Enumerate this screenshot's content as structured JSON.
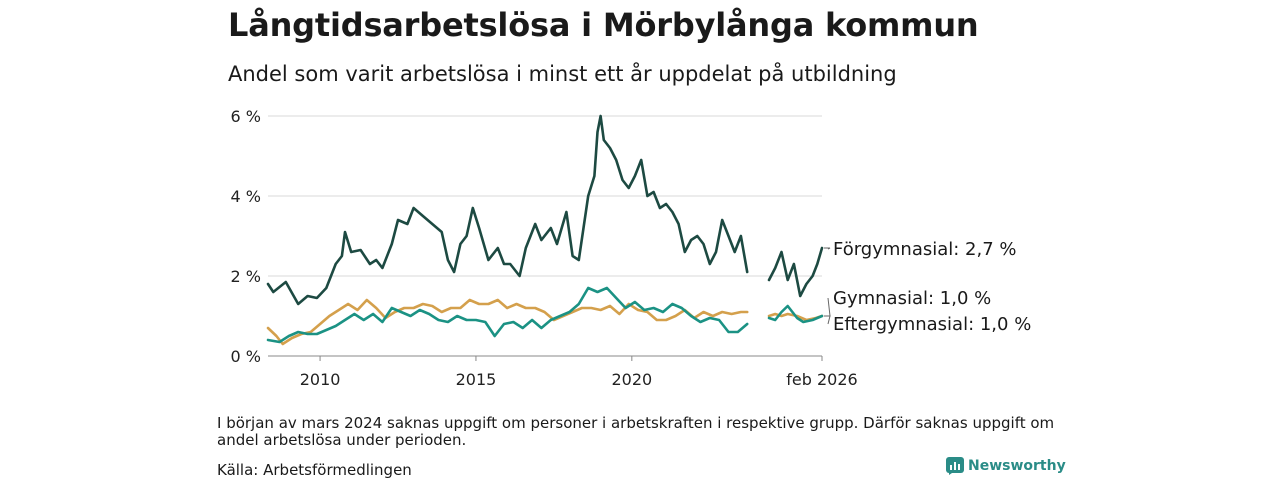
{
  "title": "Långtidsarbetslösa i Mörbylånga kommun",
  "subtitle": "Andel som varit arbetslösa i minst ett år uppdelat på utbildning",
  "note": "I början av mars 2024 saknas uppgift om personer i arbetskraften i respektive grupp. Därför saknas uppgift om andel arbetslösa under perioden.",
  "source": "Källa: Arbetsförmedlingen",
  "brand": "Newsworthy",
  "chart_data": {
    "type": "line",
    "title": "Långtidsarbetslösa i Mörbylånga kommun",
    "xlabel": "",
    "ylabel": "",
    "ylim": [
      0,
      6
    ],
    "xlim": [
      2008.33,
      2026.1
    ],
    "y_ticks": [
      0,
      2,
      4,
      6
    ],
    "y_tick_labels": [
      "0 %",
      "2 %",
      "4 %",
      "6 %"
    ],
    "x_ticks": [
      2010,
      2015,
      2020,
      2026.1
    ],
    "x_tick_labels": [
      "2010",
      "2015",
      "2020",
      "feb 2026"
    ],
    "gap": [
      2023.6,
      2024.4
    ],
    "grid": true,
    "series": [
      {
        "name": "Förgymnasial",
        "end_label": "Förgymnasial: 2,7 %",
        "color": "#1d4a42",
        "points": [
          [
            2008.33,
            1.8
          ],
          [
            2008.5,
            1.6
          ],
          [
            2008.9,
            1.85
          ],
          [
            2009.3,
            1.3
          ],
          [
            2009.6,
            1.5
          ],
          [
            2009.9,
            1.45
          ],
          [
            2010.2,
            1.7
          ],
          [
            2010.5,
            2.3
          ],
          [
            2010.7,
            2.5
          ],
          [
            2010.8,
            3.1
          ],
          [
            2011.0,
            2.6
          ],
          [
            2011.3,
            2.65
          ],
          [
            2011.6,
            2.3
          ],
          [
            2011.8,
            2.4
          ],
          [
            2012.0,
            2.2
          ],
          [
            2012.3,
            2.8
          ],
          [
            2012.5,
            3.4
          ],
          [
            2012.8,
            3.3
          ],
          [
            2013.0,
            3.7
          ],
          [
            2013.3,
            3.5
          ],
          [
            2013.6,
            3.3
          ],
          [
            2013.9,
            3.1
          ],
          [
            2014.1,
            2.4
          ],
          [
            2014.3,
            2.1
          ],
          [
            2014.5,
            2.8
          ],
          [
            2014.7,
            3.0
          ],
          [
            2014.9,
            3.7
          ],
          [
            2015.1,
            3.2
          ],
          [
            2015.4,
            2.4
          ],
          [
            2015.7,
            2.7
          ],
          [
            2015.9,
            2.3
          ],
          [
            2016.1,
            2.3
          ],
          [
            2016.4,
            2.0
          ],
          [
            2016.6,
            2.7
          ],
          [
            2016.9,
            3.3
          ],
          [
            2017.1,
            2.9
          ],
          [
            2017.4,
            3.2
          ],
          [
            2017.6,
            2.8
          ],
          [
            2017.9,
            3.6
          ],
          [
            2018.1,
            2.5
          ],
          [
            2018.3,
            2.4
          ],
          [
            2018.6,
            4.0
          ],
          [
            2018.8,
            4.5
          ],
          [
            2018.9,
            5.6
          ],
          [
            2019.0,
            6.0
          ],
          [
            2019.1,
            5.4
          ],
          [
            2019.3,
            5.2
          ],
          [
            2019.5,
            4.9
          ],
          [
            2019.7,
            4.4
          ],
          [
            2019.9,
            4.2
          ],
          [
            2020.1,
            4.5
          ],
          [
            2020.3,
            4.9
          ],
          [
            2020.5,
            4.0
          ],
          [
            2020.7,
            4.1
          ],
          [
            2020.9,
            3.7
          ],
          [
            2021.1,
            3.8
          ],
          [
            2021.3,
            3.6
          ],
          [
            2021.5,
            3.3
          ],
          [
            2021.7,
            2.6
          ],
          [
            2021.9,
            2.9
          ],
          [
            2022.1,
            3.0
          ],
          [
            2022.3,
            2.8
          ],
          [
            2022.5,
            2.3
          ],
          [
            2022.7,
            2.6
          ],
          [
            2022.9,
            3.4
          ],
          [
            2023.1,
            3.0
          ],
          [
            2023.3,
            2.6
          ],
          [
            2023.5,
            3.0
          ],
          [
            2023.7,
            2.1
          ],
          null,
          [
            2024.4,
            1.9
          ],
          [
            2024.6,
            2.2
          ],
          [
            2024.8,
            2.6
          ],
          [
            2025.0,
            1.9
          ],
          [
            2025.2,
            2.3
          ],
          [
            2025.4,
            1.5
          ],
          [
            2025.6,
            1.8
          ],
          [
            2025.8,
            2.0
          ],
          [
            2025.95,
            2.3
          ],
          [
            2026.1,
            2.7
          ]
        ]
      },
      {
        "name": "Gymnasial",
        "end_label": "Gymnasial: 1,0 %",
        "color": "#d4a04c",
        "points": [
          [
            2008.33,
            0.7
          ],
          [
            2008.6,
            0.5
          ],
          [
            2008.8,
            0.3
          ],
          [
            2009.1,
            0.45
          ],
          [
            2009.4,
            0.55
          ],
          [
            2009.7,
            0.6
          ],
          [
            2010.0,
            0.8
          ],
          [
            2010.3,
            1.0
          ],
          [
            2010.6,
            1.15
          ],
          [
            2010.9,
            1.3
          ],
          [
            2011.2,
            1.15
          ],
          [
            2011.5,
            1.4
          ],
          [
            2011.8,
            1.2
          ],
          [
            2012.1,
            0.95
          ],
          [
            2012.4,
            1.1
          ],
          [
            2012.7,
            1.2
          ],
          [
            2013.0,
            1.2
          ],
          [
            2013.3,
            1.3
          ],
          [
            2013.6,
            1.25
          ],
          [
            2013.9,
            1.1
          ],
          [
            2014.2,
            1.2
          ],
          [
            2014.5,
            1.2
          ],
          [
            2014.8,
            1.4
          ],
          [
            2015.1,
            1.3
          ],
          [
            2015.4,
            1.3
          ],
          [
            2015.7,
            1.4
          ],
          [
            2016.0,
            1.2
          ],
          [
            2016.3,
            1.3
          ],
          [
            2016.6,
            1.2
          ],
          [
            2016.9,
            1.2
          ],
          [
            2017.2,
            1.1
          ],
          [
            2017.5,
            0.9
          ],
          [
            2017.8,
            1.0
          ],
          [
            2018.1,
            1.1
          ],
          [
            2018.4,
            1.2
          ],
          [
            2018.7,
            1.2
          ],
          [
            2019.0,
            1.15
          ],
          [
            2019.3,
            1.25
          ],
          [
            2019.6,
            1.05
          ],
          [
            2019.9,
            1.3
          ],
          [
            2020.2,
            1.15
          ],
          [
            2020.5,
            1.1
          ],
          [
            2020.8,
            0.9
          ],
          [
            2021.1,
            0.9
          ],
          [
            2021.4,
            1.0
          ],
          [
            2021.7,
            1.15
          ],
          [
            2022.0,
            0.95
          ],
          [
            2022.3,
            1.1
          ],
          [
            2022.6,
            1.0
          ],
          [
            2022.9,
            1.1
          ],
          [
            2023.2,
            1.05
          ],
          [
            2023.5,
            1.1
          ],
          [
            2023.7,
            1.1
          ],
          null,
          [
            2024.4,
            1.0
          ],
          [
            2024.6,
            1.05
          ],
          [
            2024.8,
            1.0
          ],
          [
            2025.0,
            1.05
          ],
          [
            2025.3,
            1.0
          ],
          [
            2025.6,
            0.9
          ],
          [
            2025.9,
            0.95
          ],
          [
            2026.1,
            1.0
          ]
        ]
      },
      {
        "name": "Eftergymnasial",
        "end_label": "Eftergymnasial: 1,0 %",
        "color": "#1b9284",
        "points": [
          [
            2008.33,
            0.4
          ],
          [
            2008.7,
            0.35
          ],
          [
            2009.0,
            0.5
          ],
          [
            2009.3,
            0.6
          ],
          [
            2009.6,
            0.55
          ],
          [
            2009.9,
            0.55
          ],
          [
            2010.2,
            0.65
          ],
          [
            2010.5,
            0.75
          ],
          [
            2010.8,
            0.9
          ],
          [
            2011.1,
            1.05
          ],
          [
            2011.4,
            0.9
          ],
          [
            2011.7,
            1.05
          ],
          [
            2012.0,
            0.85
          ],
          [
            2012.3,
            1.2
          ],
          [
            2012.6,
            1.1
          ],
          [
            2012.9,
            1.0
          ],
          [
            2013.2,
            1.15
          ],
          [
            2013.5,
            1.05
          ],
          [
            2013.8,
            0.9
          ],
          [
            2014.1,
            0.85
          ],
          [
            2014.4,
            1.0
          ],
          [
            2014.7,
            0.9
          ],
          [
            2015.0,
            0.9
          ],
          [
            2015.3,
            0.85
          ],
          [
            2015.6,
            0.5
          ],
          [
            2015.9,
            0.8
          ],
          [
            2016.2,
            0.85
          ],
          [
            2016.5,
            0.7
          ],
          [
            2016.8,
            0.9
          ],
          [
            2017.1,
            0.7
          ],
          [
            2017.4,
            0.9
          ],
          [
            2017.7,
            1.0
          ],
          [
            2018.0,
            1.1
          ],
          [
            2018.3,
            1.3
          ],
          [
            2018.6,
            1.7
          ],
          [
            2018.9,
            1.6
          ],
          [
            2019.2,
            1.7
          ],
          [
            2019.5,
            1.45
          ],
          [
            2019.8,
            1.2
          ],
          [
            2020.1,
            1.35
          ],
          [
            2020.4,
            1.15
          ],
          [
            2020.7,
            1.2
          ],
          [
            2021.0,
            1.1
          ],
          [
            2021.3,
            1.3
          ],
          [
            2021.6,
            1.2
          ],
          [
            2021.9,
            1.0
          ],
          [
            2022.2,
            0.85
          ],
          [
            2022.5,
            0.95
          ],
          [
            2022.8,
            0.9
          ],
          [
            2023.1,
            0.6
          ],
          [
            2023.4,
            0.6
          ],
          [
            2023.7,
            0.8
          ],
          null,
          [
            2024.4,
            0.95
          ],
          [
            2024.6,
            0.9
          ],
          [
            2024.8,
            1.1
          ],
          [
            2025.0,
            1.25
          ],
          [
            2025.3,
            0.95
          ],
          [
            2025.5,
            0.85
          ],
          [
            2025.8,
            0.9
          ],
          [
            2026.1,
            1.0
          ]
        ]
      }
    ]
  }
}
